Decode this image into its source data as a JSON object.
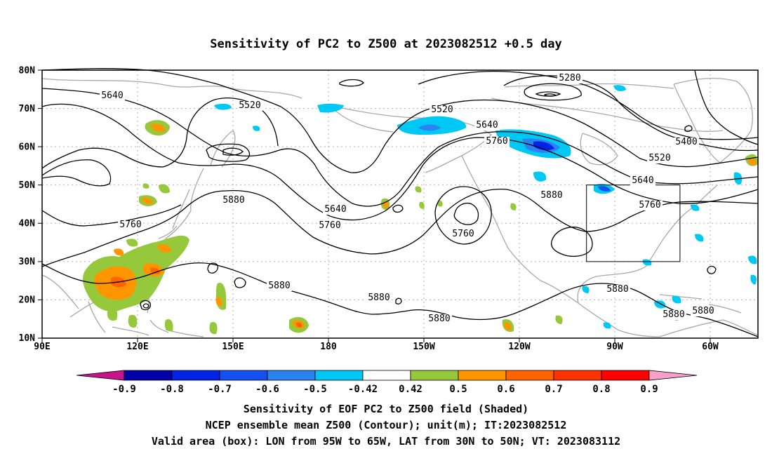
{
  "title": "Sensitivity of PC2 to Z500 at 2023082512 +0.5 day",
  "lat_labels": [
    "80N",
    "70N",
    "60N",
    "50N",
    "40N",
    "30N",
    "20N",
    "10N"
  ],
  "lon_labels": [
    "90E",
    "120E",
    "150E",
    "180",
    "150W",
    "120W",
    "90W",
    "60W"
  ],
  "contour_labels": [
    "5280",
    "5400",
    "5520",
    "5520",
    "5520",
    "5640",
    "5640",
    "5640",
    "5640",
    "5760",
    "5760",
    "5760",
    "5760",
    "5760",
    "5880",
    "5880",
    "5880",
    "5880",
    "5880",
    "5880",
    "5880",
    "5880"
  ],
  "colorbar": {
    "tick_labels": [
      "-0.9",
      "-0.8",
      "-0.7",
      "-0.6",
      "-0.5",
      "-0.42",
      "0.42",
      "0.5",
      "0.6",
      "0.7",
      "0.8",
      "0.9"
    ],
    "colors": [
      "#0000a8",
      "#0024e6",
      "#1450f2",
      "#2c82f0",
      "#00c8f5",
      "#ffffff",
      "#96c83c",
      "#ff9600",
      "#ff6400",
      "#ff3200",
      "#ff0000"
    ],
    "low_end_color": "#c8148c",
    "high_end_color": "#f7a0c8"
  },
  "validation_box": {
    "lon_from": "95W",
    "lon_to": "65W",
    "lat_from": "30N",
    "lat_to": "50N"
  },
  "caption": [
    "Sensitivity of EOF PC2 to Z500 field (Shaded)",
    "NCEP ensemble mean Z500 (Contour); unit(m); IT:2023082512",
    "Valid area (box): LON from 95W to 65W, LAT from 30N to 50N; VT: 2023083112"
  ]
}
